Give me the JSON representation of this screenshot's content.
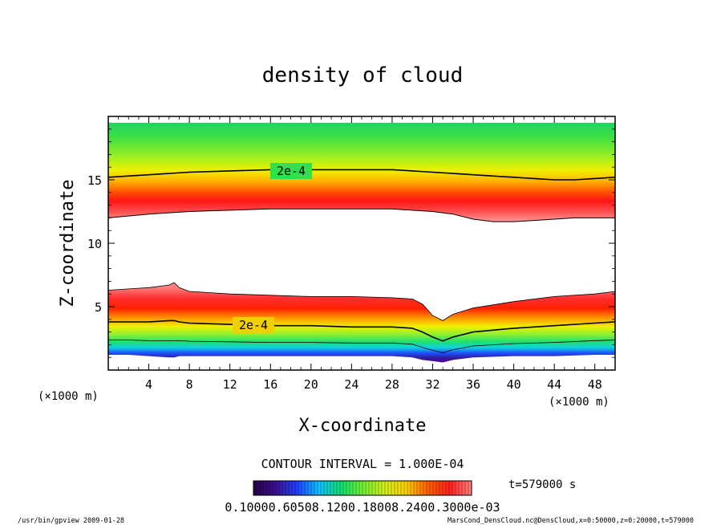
{
  "chart_data": {
    "type": "heatmap",
    "title": "density of cloud",
    "xlabel": "X-coordinate",
    "ylabel": "Z-coordinate",
    "x_unit_left": "(×1000 m)",
    "x_unit_right": "(×1000 m)",
    "xlim": [
      0,
      50
    ],
    "ylim": [
      0,
      20
    ],
    "x_ticks": [
      4,
      8,
      12,
      16,
      20,
      24,
      28,
      32,
      36,
      40,
      44,
      48
    ],
    "y_ticks": [
      5,
      10,
      15
    ],
    "contour_label": "2e-4",
    "contour_interval_text": "CONTOUR INTERVAL = 1.000E-04",
    "time_text": "t=579000 s",
    "colorbar_text": "0.10000.60508.1200.18008.2400.3000e-03",
    "colorbar_colors": [
      "#2a004a",
      "#3a1090",
      "#2040ff",
      "#10c0ff",
      "#10e070",
      "#70f030",
      "#d0f020",
      "#ffd000",
      "#ff6000",
      "#ff2020",
      "#ff8080"
    ],
    "upper_cloud": {
      "x": [
        0,
        4,
        8,
        12,
        16,
        20,
        24,
        28,
        30,
        32,
        34,
        36,
        38,
        40,
        42,
        44,
        46,
        48,
        50
      ],
      "top": [
        19.5,
        19.5,
        19.5,
        19.5,
        19.5,
        19.5,
        19.5,
        19.5,
        19.5,
        19.5,
        19.5,
        19.5,
        19.5,
        19.5,
        19.5,
        19.5,
        19.5,
        19.5,
        19.5
      ],
      "contour": [
        15.2,
        15.4,
        15.6,
        15.7,
        15.8,
        15.8,
        15.8,
        15.8,
        15.7,
        15.6,
        15.5,
        15.4,
        15.3,
        15.2,
        15.1,
        15.0,
        15.0,
        15.1,
        15.2
      ],
      "bottom": [
        12.0,
        12.3,
        12.5,
        12.6,
        12.7,
        12.7,
        12.7,
        12.7,
        12.6,
        12.5,
        12.3,
        11.9,
        11.7,
        11.7,
        11.8,
        11.9,
        12.0,
        12.0,
        12.0
      ]
    },
    "lower_cloud": {
      "x": [
        0,
        2,
        4,
        6,
        6.5,
        7,
        8,
        12,
        16,
        20,
        24,
        28,
        30,
        31,
        32,
        33,
        34,
        36,
        40,
        44,
        48,
        50
      ],
      "top": [
        6.3,
        6.4,
        6.5,
        6.7,
        6.9,
        6.5,
        6.2,
        6.0,
        5.9,
        5.8,
        5.8,
        5.7,
        5.6,
        5.2,
        4.3,
        3.9,
        4.4,
        4.9,
        5.4,
        5.8,
        6.0,
        6.2
      ],
      "contour": [
        3.8,
        3.8,
        3.8,
        3.9,
        3.9,
        3.8,
        3.7,
        3.6,
        3.5,
        3.5,
        3.4,
        3.4,
        3.3,
        3.0,
        2.6,
        2.3,
        2.6,
        3.0,
        3.3,
        3.5,
        3.7,
        3.8
      ],
      "bottom": [
        1.2,
        1.2,
        1.1,
        1.0,
        1.0,
        1.1,
        1.1,
        1.1,
        1.1,
        1.1,
        1.1,
        1.1,
        1.0,
        0.8,
        0.7,
        0.6,
        0.8,
        1.0,
        1.1,
        1.1,
        1.2,
        1.2
      ]
    }
  },
  "footer": {
    "left": "/usr/bin/gpview  2009-01-28",
    "right": "MarsCond_DensCloud.nc@DensCloud,x=0:50000,z=0:20000,t=579000"
  }
}
